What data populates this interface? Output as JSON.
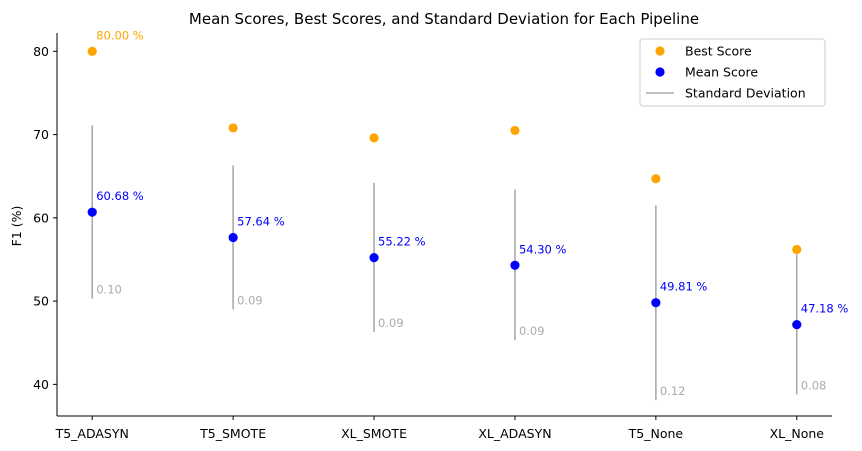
{
  "chart_data": {
    "type": "scatter",
    "title": "Mean Scores, Best Scores, and Standard Deviation for Each Pipeline",
    "xlabel": "",
    "ylabel": "F1 (%)",
    "ylim": [
      36.2,
      82.2
    ],
    "yticks": [
      40,
      50,
      60,
      70,
      80
    ],
    "grid": false,
    "legend_position": "top-right",
    "categories": [
      "T5_ADASYN",
      "T5_SMOTE",
      "XL_SMOTE",
      "XL_ADASYN",
      "T5_None",
      "XL_None"
    ],
    "series": [
      {
        "name": "Best Score",
        "kind": "point",
        "color": "#ffa500",
        "values": [
          80.0,
          70.8,
          69.6,
          70.5,
          64.7,
          56.2
        ],
        "labels": [
          "80.00 %",
          "",
          "",
          "",
          "",
          ""
        ]
      },
      {
        "name": "Mean Score",
        "kind": "point",
        "color": "#0000ff",
        "values": [
          60.68,
          57.64,
          55.22,
          54.3,
          49.81,
          47.18
        ],
        "labels": [
          "60.68 %",
          "57.64 %",
          "55.22 %",
          "54.30 %",
          "49.81 %",
          "47.18 %"
        ]
      },
      {
        "name": "Standard Deviation",
        "kind": "errorbar",
        "color": "#aaaaaa",
        "values": [
          0.1,
          0.09,
          0.09,
          0.09,
          0.12,
          0.08
        ],
        "ranges": [
          [
            50.3,
            71.1
          ],
          [
            49.0,
            66.3
          ],
          [
            46.3,
            64.2
          ],
          [
            45.3,
            63.4
          ],
          [
            38.1,
            61.5
          ],
          [
            38.8,
            55.6
          ]
        ],
        "labels": [
          "0.10",
          "0.09",
          "0.09",
          "0.09",
          "0.12",
          "0.08"
        ]
      }
    ]
  }
}
